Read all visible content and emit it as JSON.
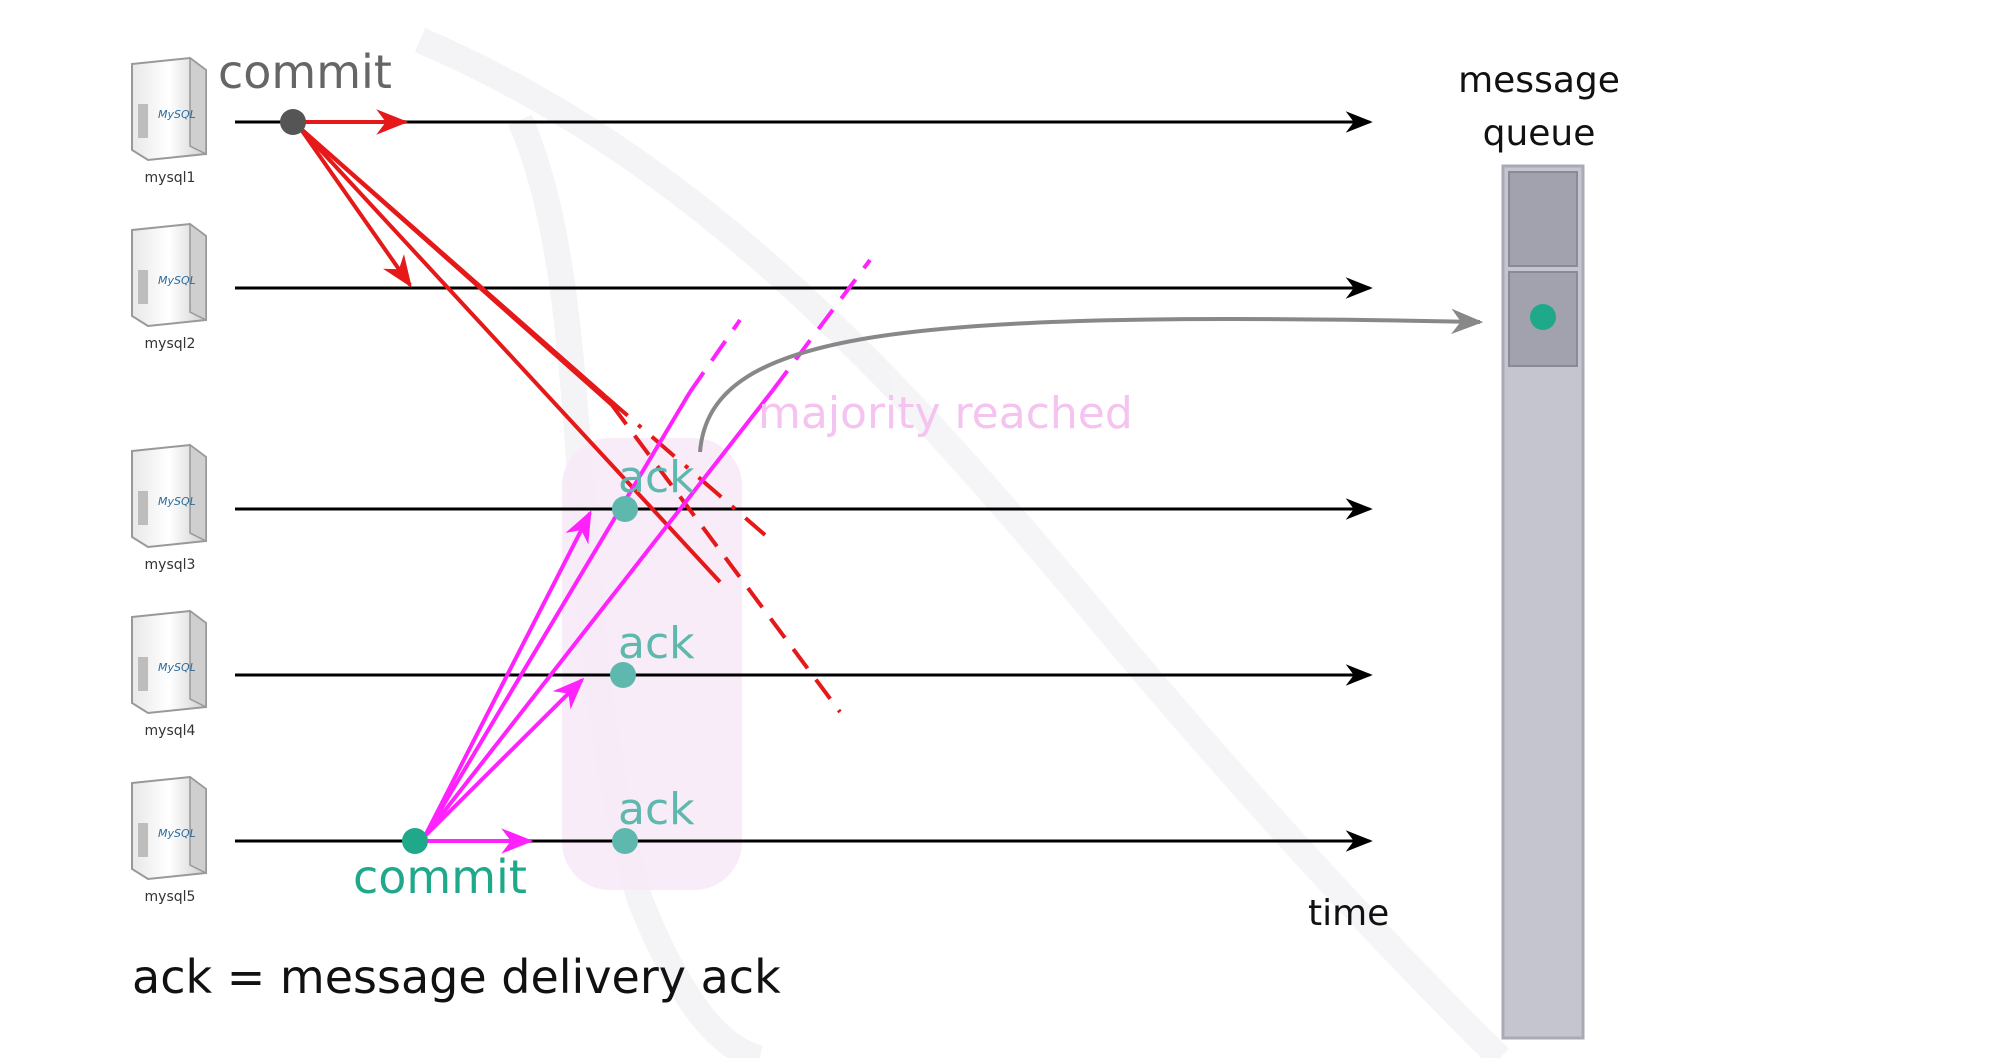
{
  "servers": [
    {
      "name": "mysql1",
      "logo": "MySQL"
    },
    {
      "name": "mysql2",
      "logo": "MySQL"
    },
    {
      "name": "mysql3",
      "logo": "MySQL"
    },
    {
      "name": "mysql4",
      "logo": "MySQL"
    },
    {
      "name": "mysql5",
      "logo": "MySQL"
    }
  ],
  "commit_top": "commit",
  "commit_bottom": "commit",
  "acks": [
    "ack",
    "ack",
    "ack"
  ],
  "majority_label": "majority reached",
  "queue_label_line1": "message",
  "queue_label_line2": "queue",
  "time_label": "time",
  "legend": "ack = message delivery ack",
  "colors": {
    "timeline": "#000000",
    "red_message": "#e51919",
    "magenta_message": "#ff22ff",
    "ack_dot": "#5fb8ad",
    "commit_dot_top": "#555555",
    "commit_dot_bottom": "#1fa88a",
    "queue_body": "#c5c5cf",
    "queue_slot": "#a2a2ae",
    "queue_dot": "#1fa88a",
    "majority_text": "#f4c3f0",
    "ack_region": "#f6e9f6"
  }
}
